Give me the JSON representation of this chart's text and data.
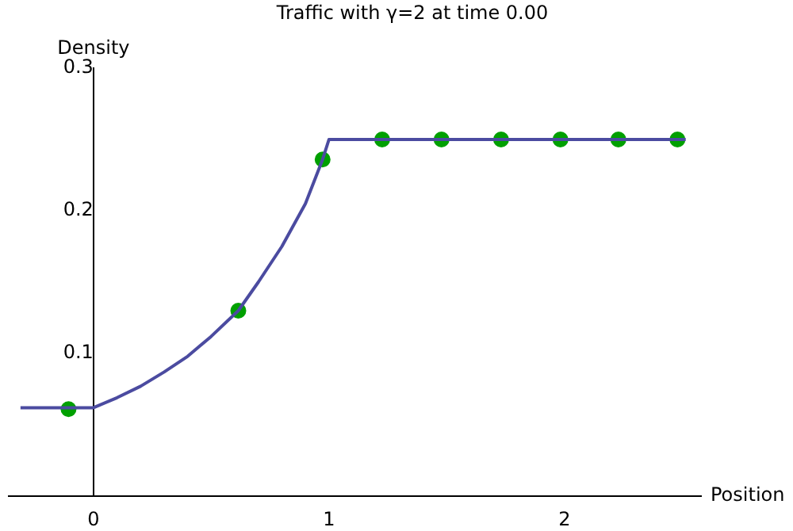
{
  "chart_data": {
    "type": "line",
    "title": "Traffic with γ=2 at time 0.00",
    "xlabel": "Position",
    "ylabel": "Density",
    "xlim": [
      -0.36,
      2.58
    ],
    "ylim": [
      0,
      0.3
    ],
    "xticks": [
      0,
      1,
      2
    ],
    "yticks": [
      0.1,
      0.2,
      0.3
    ],
    "grid": false,
    "series": [
      {
        "color": "#4b4ba0",
        "marker": "none",
        "x": [
          -0.31,
          0,
          0.1,
          0.2,
          0.3,
          0.4,
          0.5,
          0.615,
          0.7,
          0.8,
          0.9,
          0.973,
          1.0,
          2.515
        ],
        "values": [
          0.062,
          0.062,
          0.069,
          0.077,
          0.087,
          0.098,
          0.112,
          0.13,
          0.15,
          0.175,
          0.205,
          0.236,
          0.25,
          0.25
        ]
      },
      {
        "type": "scatter",
        "color": "#00a000",
        "marker": "circle",
        "x": [
          -0.106,
          0.615,
          0.973,
          1.226,
          1.478,
          1.731,
          1.983,
          2.229,
          2.48
        ],
        "values": [
          0.061,
          0.13,
          0.236,
          0.25,
          0.25,
          0.25,
          0.25,
          0.25,
          0.25
        ]
      }
    ]
  }
}
